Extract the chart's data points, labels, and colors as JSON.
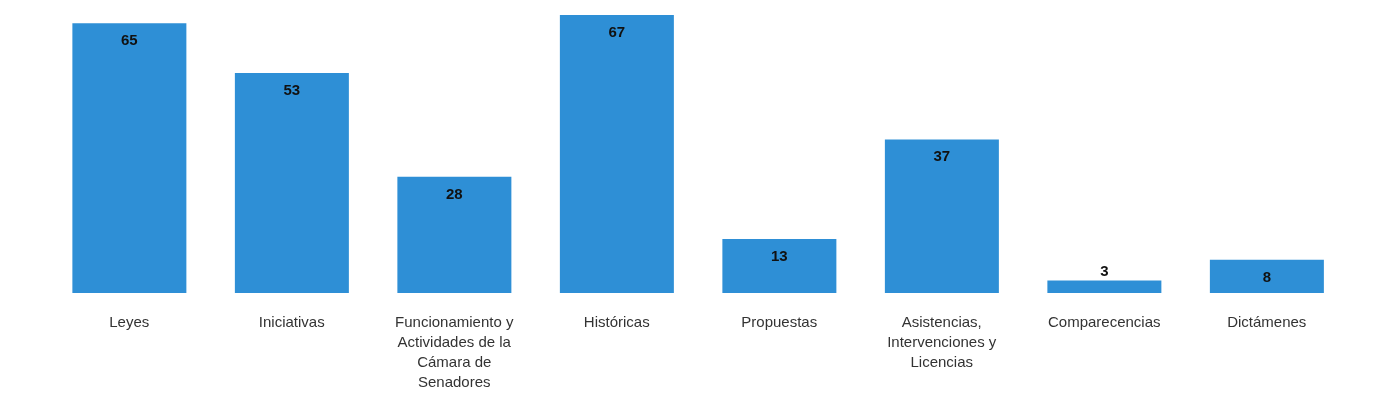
{
  "chart_data": {
    "type": "bar",
    "categories": [
      "Leyes",
      "Iniciativas",
      "Funcionamiento y Actividades de la Cámara de Senadores",
      "Históricas",
      "Propuestas",
      "Asistencias, Intervenciones y Licencias",
      "Comparecencias",
      "Dictámenes"
    ],
    "values": [
      65,
      53,
      28,
      67,
      13,
      37,
      3,
      8
    ],
    "color": "#2e8fd6",
    "data_labels": true
  }
}
